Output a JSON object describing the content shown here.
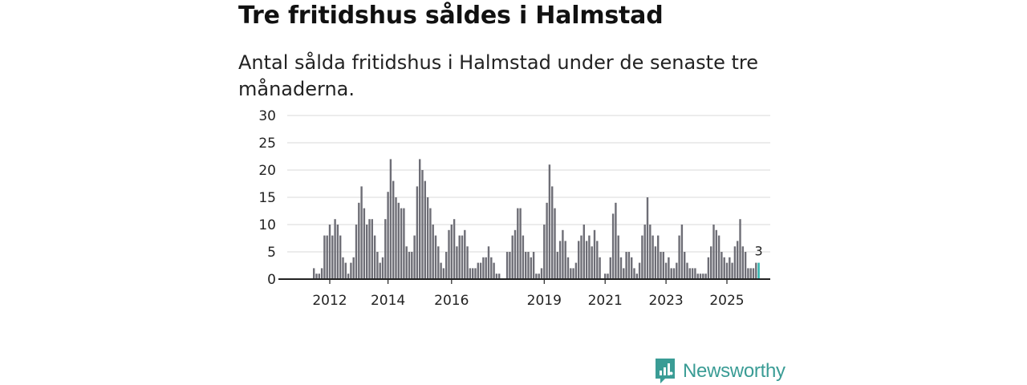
{
  "title": "Tre fritidshus såldes i Halmstad",
  "subtitle": "Antal sålda fritidshus i Halmstad under de senaste tre månaderna.",
  "brand": {
    "name": "Newsworthy",
    "color": "#3a9c95"
  },
  "colors": {
    "bar": "#6e6e76",
    "highlight": "#2bb3ad",
    "grid": "#d9d9d9",
    "axis": "#222222"
  },
  "chart_data": {
    "type": "bar",
    "title": "Tre fritidshus såldes i Halmstad",
    "subtitle": "Antal sålda fritidshus i Halmstad under de senaste tre månaderna.",
    "xlabel": "",
    "ylabel": "",
    "ylim": [
      0,
      30
    ],
    "yticks": [
      0,
      5,
      10,
      15,
      20,
      25,
      30
    ],
    "grid": true,
    "frequency": "monthly",
    "start": "2011-01",
    "xticks": [
      {
        "label": "2012",
        "index": 15
      },
      {
        "label": "2014",
        "index": 37
      },
      {
        "label": "2016",
        "index": 61
      },
      {
        "label": "2019",
        "index": 96
      },
      {
        "label": "2021",
        "index": 119
      },
      {
        "label": "2023",
        "index": 142
      },
      {
        "label": "2025",
        "index": 165
      }
    ],
    "values": [
      null,
      null,
      null,
      null,
      null,
      null,
      null,
      null,
      null,
      2,
      1,
      1,
      2,
      8,
      8,
      10,
      8,
      11,
      10,
      8,
      4,
      3,
      1,
      3,
      4,
      10,
      14,
      17,
      13,
      10,
      11,
      11,
      8,
      5,
      3,
      4,
      11,
      16,
      22,
      18,
      15,
      14,
      13,
      13,
      6,
      5,
      5,
      8,
      17,
      22,
      20,
      18,
      15,
      13,
      10,
      8,
      6,
      3,
      2,
      5,
      9,
      10,
      11,
      6,
      8,
      8,
      9,
      6,
      2,
      2,
      2,
      3,
      3,
      4,
      4,
      6,
      4,
      3,
      1,
      1,
      null,
      null,
      5,
      5,
      8,
      9,
      13,
      13,
      8,
      5,
      5,
      4,
      5,
      1,
      1,
      2,
      10,
      14,
      21,
      17,
      13,
      5,
      7,
      9,
      7,
      4,
      2,
      2,
      3,
      7,
      8,
      10,
      7,
      8,
      6,
      9,
      7,
      4,
      null,
      1,
      1,
      4,
      12,
      14,
      8,
      4,
      2,
      5,
      5,
      4,
      2,
      1,
      3,
      8,
      10,
      15,
      10,
      8,
      6,
      8,
      5,
      5,
      3,
      4,
      2,
      2,
      3,
      8,
      10,
      5,
      3,
      2,
      2,
      2,
      1,
      1,
      1,
      1,
      4,
      6,
      10,
      9,
      8,
      5,
      4,
      3,
      4,
      3,
      6,
      7,
      11,
      6,
      5,
      2,
      2,
      2,
      3,
      3
    ],
    "highlight_index": 177,
    "highlight_label": "3"
  }
}
